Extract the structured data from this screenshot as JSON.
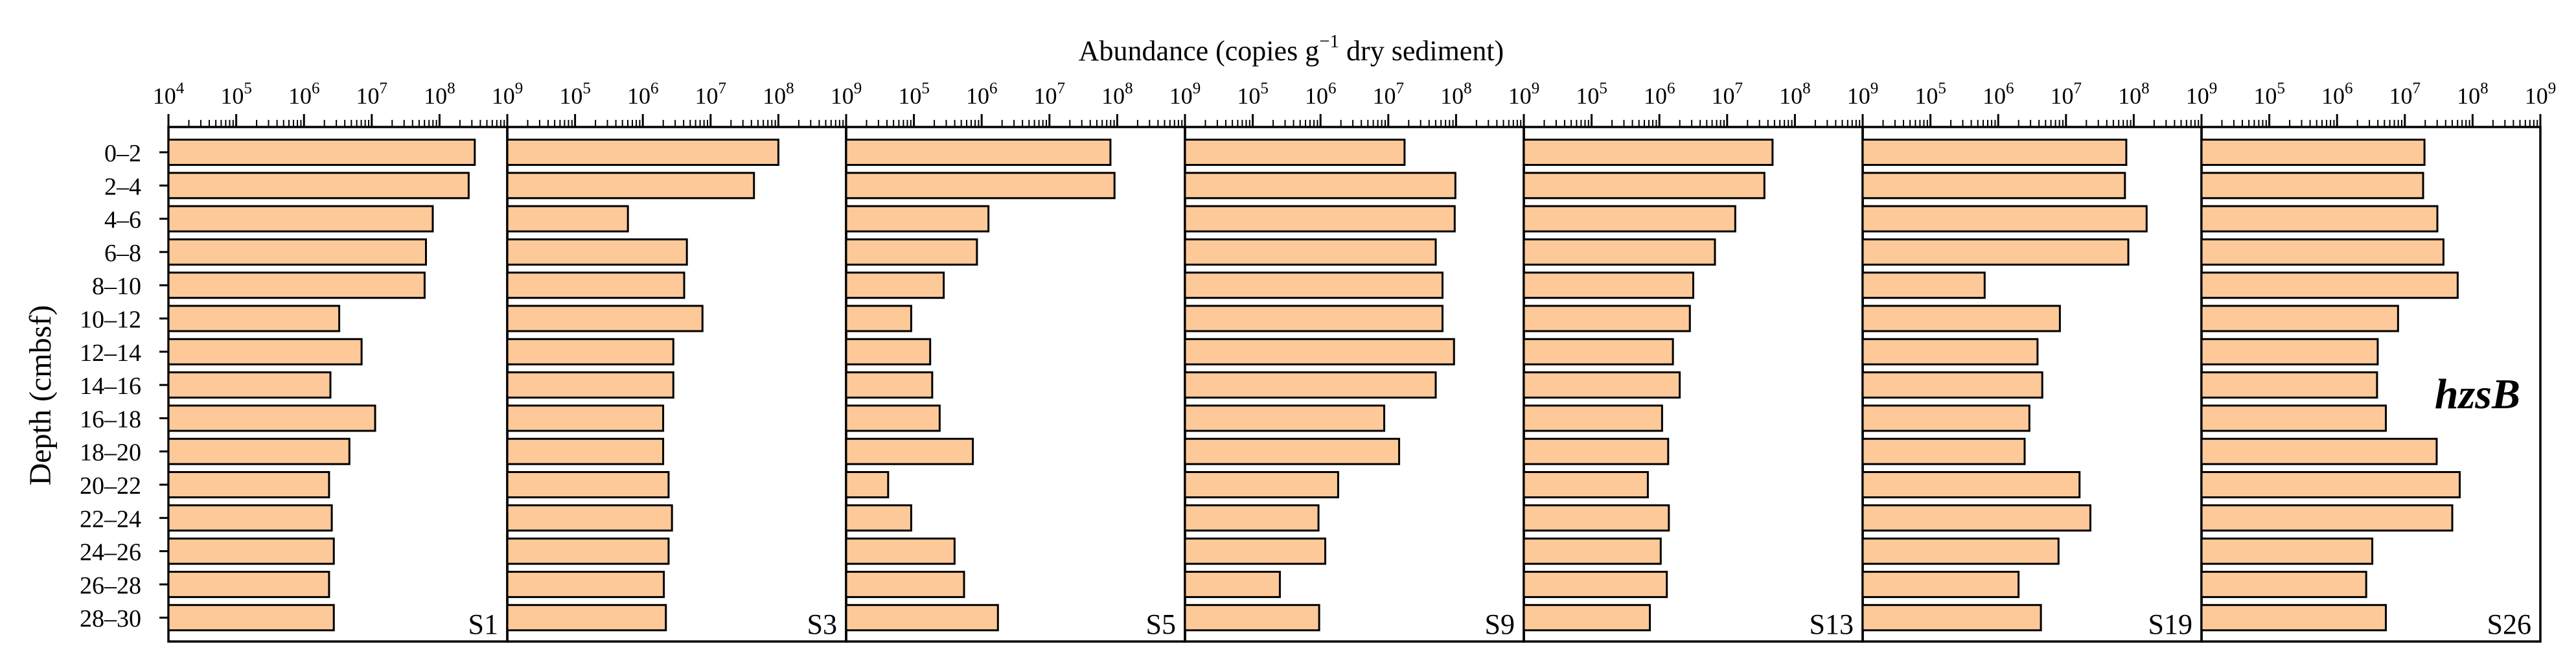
{
  "chart_data": {
    "type": "bar",
    "orientation": "horizontal",
    "title": "",
    "xlabel_main": "Abundance (copies g",
    "xlabel_sup": "−1",
    "xlabel_tail": " dry sediment)",
    "ylabel": "Depth (cmbsf)",
    "gene_label": "hzsB",
    "x_scale": "log",
    "xlim_log10": [
      4,
      9
    ],
    "tick_exponents": [
      4,
      5,
      6,
      7,
      8,
      9
    ],
    "tick_base": "10",
    "categories": [
      "0–2",
      "2–4",
      "4–6",
      "6–8",
      "8–10",
      "10–12",
      "12–14",
      "14–16",
      "16–18",
      "18–20",
      "20–22",
      "22–24",
      "24–26",
      "26–28",
      "28–30"
    ],
    "bar_fill": "#fdc998",
    "bar_stroke": "#000000",
    "series": [
      {
        "name": "S1",
        "values_log10": [
          8.52,
          8.43,
          7.9,
          7.8,
          7.78,
          6.52,
          6.85,
          6.39,
          7.05,
          6.67,
          6.37,
          6.41,
          6.44,
          6.37,
          6.44
        ]
      },
      {
        "name": "S3",
        "values_log10": [
          8.0,
          7.64,
          5.78,
          6.65,
          6.61,
          6.88,
          6.45,
          6.45,
          6.3,
          6.3,
          6.38,
          6.43,
          6.38,
          6.31,
          6.34
        ]
      },
      {
        "name": "S5",
        "values_log10": [
          7.9,
          7.96,
          6.1,
          5.93,
          5.44,
          4.96,
          5.24,
          5.27,
          5.38,
          5.87,
          4.62,
          4.96,
          5.6,
          5.74,
          6.24
        ]
      },
      {
        "name": "S9",
        "values_log10": [
          7.24,
          7.99,
          7.98,
          7.7,
          7.8,
          7.8,
          7.97,
          7.7,
          6.94,
          7.16,
          6.26,
          5.97,
          6.07,
          5.4,
          5.98
        ]
      },
      {
        "name": "S13",
        "values_log10": [
          7.67,
          7.55,
          7.12,
          6.82,
          6.5,
          6.45,
          6.2,
          6.3,
          6.04,
          6.13,
          5.83,
          6.14,
          6.02,
          6.11,
          5.86
        ]
      },
      {
        "name": "S19",
        "values_log10": [
          7.89,
          7.87,
          8.19,
          7.92,
          5.8,
          6.91,
          6.58,
          6.65,
          6.46,
          6.39,
          7.2,
          7.36,
          6.89,
          6.3,
          6.63
        ]
      },
      {
        "name": "S26",
        "values_log10": [
          7.29,
          7.27,
          7.48,
          7.57,
          7.78,
          6.9,
          6.6,
          6.59,
          6.72,
          7.47,
          7.81,
          7.7,
          6.52,
          6.43,
          6.72
        ]
      }
    ]
  }
}
